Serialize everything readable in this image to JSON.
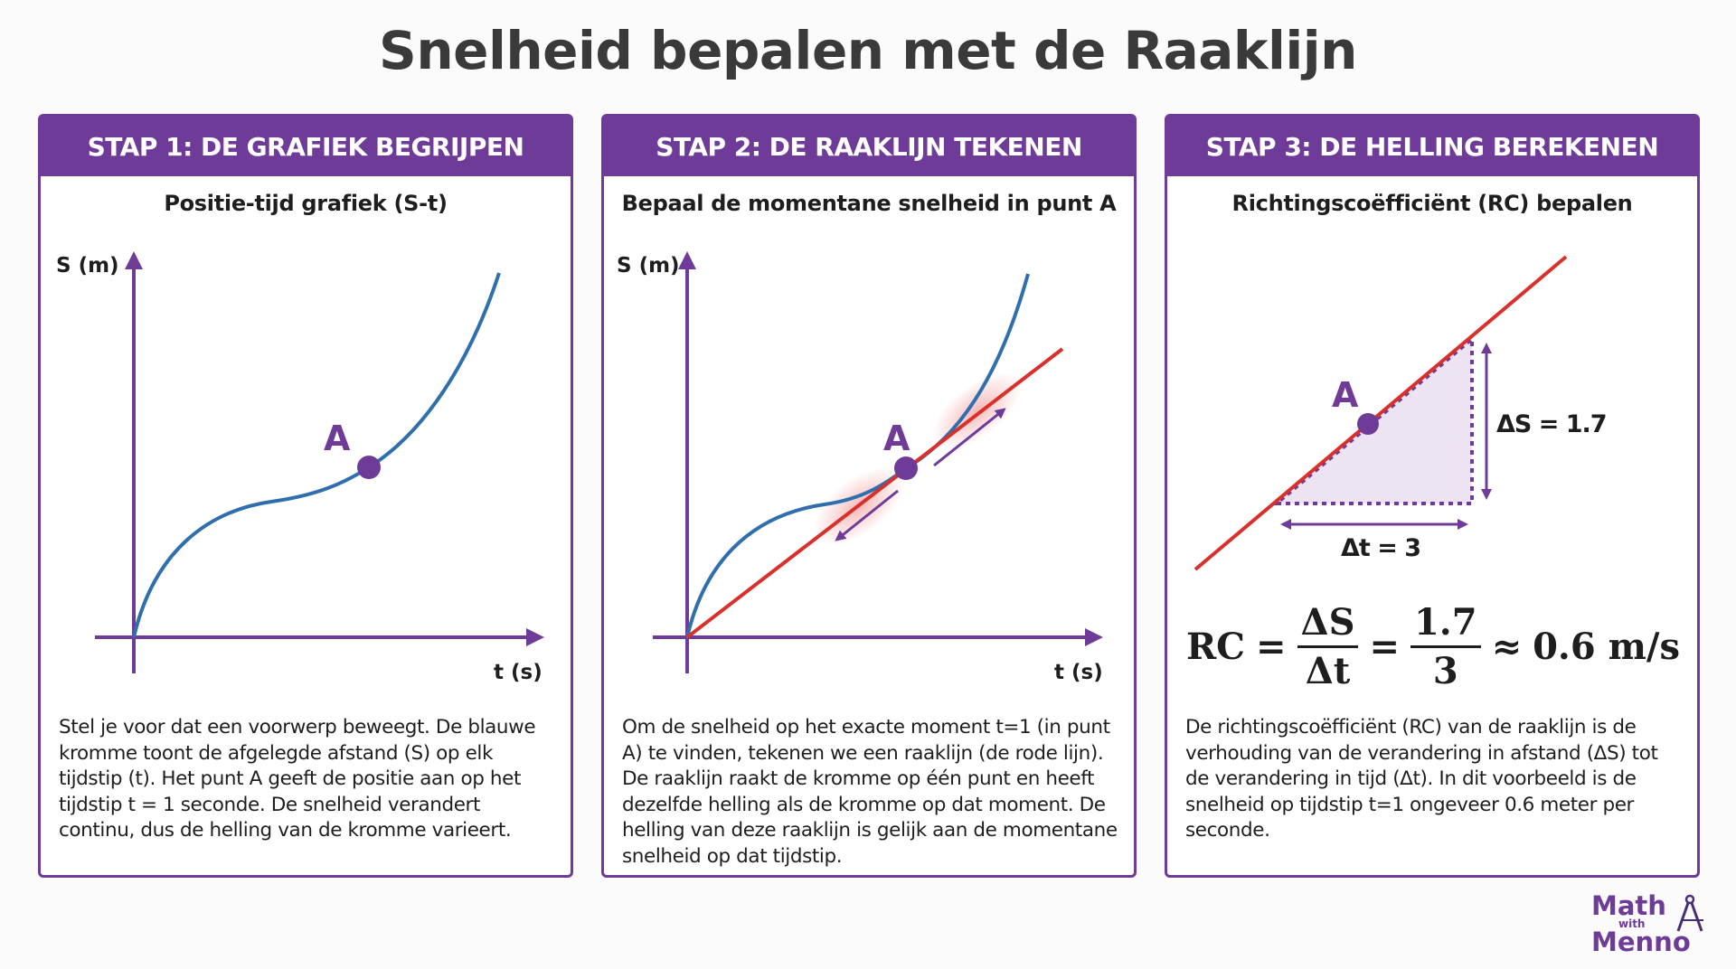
{
  "title": "Snelheid bepalen met de Raaklijn",
  "colors": {
    "accent": "#6f3b98",
    "curve": "#2f6fae",
    "tangent": "#d9302c",
    "text": "#1e1e1e"
  },
  "panels": [
    {
      "header": "STAP 1: DE GRAFIEK BEGRIJPEN",
      "subtitle": "Positie-tijd grafiek (S-t)",
      "y_label": "S (m)",
      "x_label": "t (s)",
      "point_label": "A",
      "body": "Stel je voor dat een voorwerp beweegt. De blauwe kromme toont de afgelegde afstand (S) op elk tijdstip (t). Het punt A geeft de positie aan op het tijdstip t = 1 seconde. De snelheid verandert continu, dus de helling van de kromme varieert."
    },
    {
      "header": "STAP 2: DE RAAKLIJN TEKENEN",
      "subtitle": "Bepaal de momentane snelheid in punt A",
      "y_label": "S (m)",
      "x_label": "t (s)",
      "point_label": "A",
      "body": "Om de snelheid op het exacte moment t=1 (in punt A) te vinden, tekenen we een raaklijn (de rode lijn). De raaklijn raakt de kromme op één punt en heeft dezelfde helling als de kromme op dat moment. De helling van deze raaklijn is gelijk aan de momentane snelheid op dat tijdstip."
    },
    {
      "header": "STAP 3: DE HELLING BEREKENEN",
      "subtitle": "Richtingscoëfficiënt (RC) bepalen",
      "point_label": "A",
      "delta_s_label": "ΔS = 1.7",
      "delta_t_label": "Δt = 3",
      "formula": {
        "lhs": "RC",
        "eq": "=",
        "num1": "ΔS",
        "den1": "Δt",
        "num2": "1.7",
        "den2": "3",
        "approx": "≈",
        "result": "0.6 m/s"
      },
      "body": "De richtingscoëfficiënt (RC) van de raaklijn is de verhouding van de verandering in afstand (ΔS) tot de verandering in tijd (Δt). In dit voorbeeld is de snelheid op tijdstip t=1 ongeveer 0.6 meter per seconde."
    }
  ],
  "logo": {
    "line1": "Math",
    "line2": "with",
    "line3": "Menno",
    "icon": "compass-icon"
  }
}
